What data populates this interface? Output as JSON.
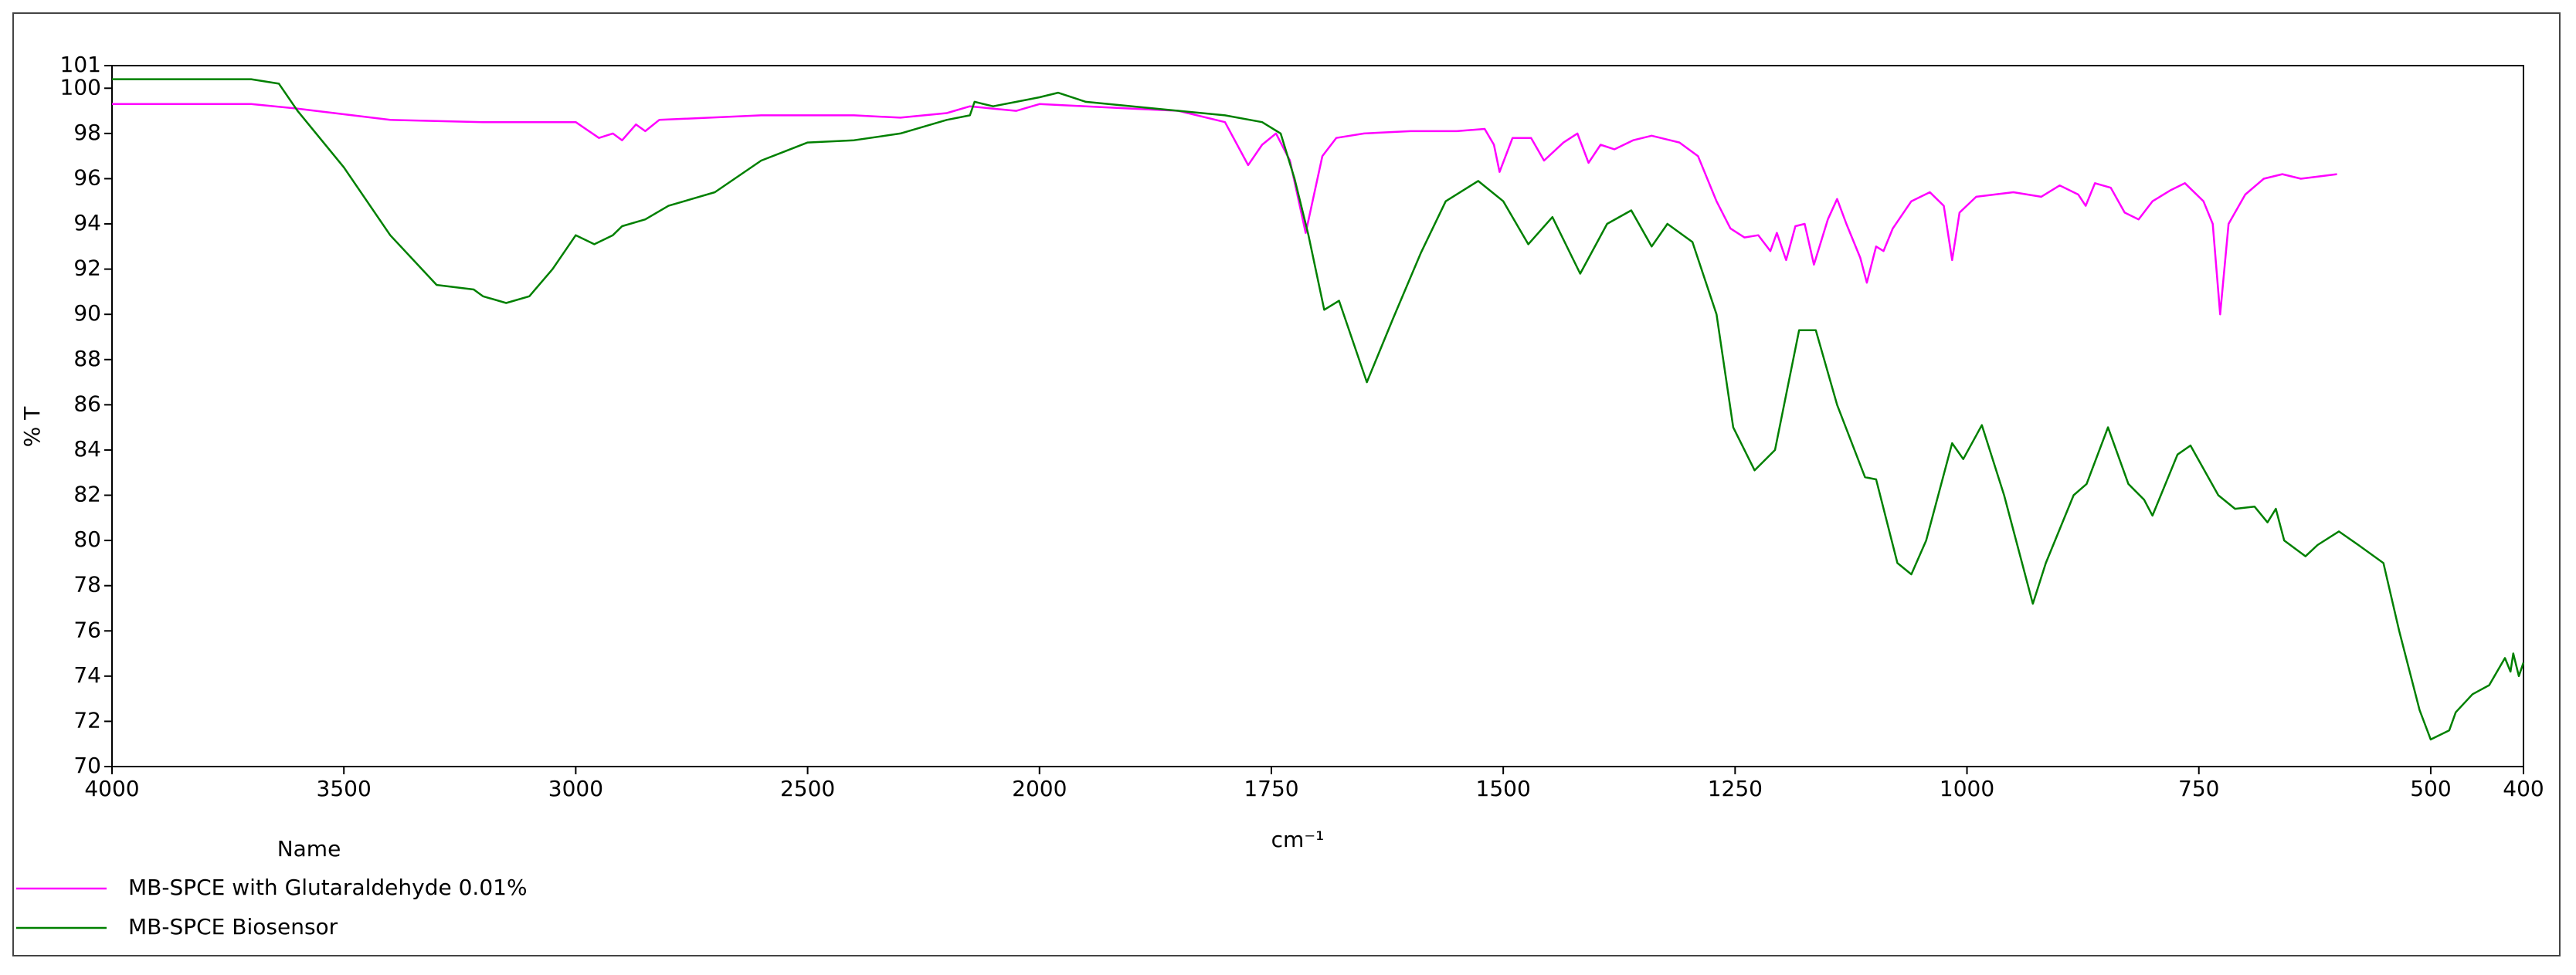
{
  "chart_data": {
    "type": "line",
    "x_label": "cm⁻¹",
    "y_label": "% T",
    "legend_title": "Name",
    "legend": "bottom-left",
    "xlim": [
      4000,
      400
    ],
    "xticks": [
      4000,
      3500,
      3000,
      2500,
      2000,
      1750,
      1500,
      1250,
      1000,
      750,
      500,
      400
    ],
    "ylim": [
      70,
      101
    ],
    "yticks": [
      70,
      72,
      74,
      76,
      78,
      80,
      82,
      84,
      86,
      88,
      90,
      92,
      94,
      96,
      98,
      100,
      101
    ],
    "grid": false,
    "series": [
      {
        "name": "MB-SPCE with Glutaraldehyde 0.01%",
        "color": "#ff00ff",
        "x": [
          4000,
          3700,
          3600,
          3400,
          3200,
          3000,
          2950,
          2920,
          2900,
          2870,
          2850,
          2820,
          2600,
          2400,
          2300,
          2200,
          2150,
          2100,
          2050,
          2000,
          1950,
          1900,
          1850,
          1800,
          1775,
          1760,
          1745,
          1730,
          1713,
          1695,
          1680,
          1650,
          1600,
          1550,
          1520,
          1510,
          1504,
          1490,
          1470,
          1456,
          1435,
          1420,
          1408,
          1395,
          1380,
          1360,
          1340,
          1310,
          1290,
          1270,
          1255,
          1240,
          1225,
          1212,
          1205,
          1195,
          1185,
          1175,
          1165,
          1150,
          1140,
          1130,
          1115,
          1108,
          1098,
          1090,
          1080,
          1060,
          1040,
          1025,
          1016,
          1008,
          990,
          950,
          920,
          900,
          880,
          872,
          862,
          845,
          830,
          815,
          800,
          780,
          765,
          745,
          735,
          727,
          718,
          700,
          680,
          660,
          640,
          620,
          601
        ],
        "values": [
          99.3,
          99.3,
          99.1,
          98.6,
          98.5,
          98.5,
          97.8,
          98.0,
          97.7,
          98.4,
          98.1,
          98.6,
          98.8,
          98.8,
          98.7,
          98.9,
          99.2,
          99.1,
          99.0,
          99.3,
          99.2,
          99.1,
          99.0,
          98.5,
          96.6,
          97.5,
          98.0,
          96.8,
          93.6,
          97.0,
          97.8,
          98.0,
          98.1,
          98.1,
          98.2,
          97.5,
          96.3,
          97.8,
          97.8,
          96.8,
          97.6,
          98.0,
          96.7,
          97.5,
          97.3,
          97.7,
          97.9,
          97.6,
          97.0,
          95.0,
          93.8,
          93.4,
          93.5,
          92.8,
          93.6,
          92.4,
          93.9,
          94.0,
          92.2,
          94.2,
          95.1,
          94.0,
          92.5,
          91.4,
          93.0,
          92.8,
          93.8,
          95.0,
          95.4,
          94.8,
          92.4,
          94.5,
          95.2,
          95.4,
          95.2,
          95.7,
          95.3,
          94.8,
          95.8,
          95.6,
          94.5,
          94.2,
          95.0,
          95.5,
          95.8,
          95.0,
          94.0,
          90.0,
          94.0,
          95.3,
          96.0,
          96.2,
          96.0,
          96.1,
          96.2
        ]
      },
      {
        "name": "MB-SPCE Biosensor",
        "color": "#008000",
        "x": [
          4000,
          3700,
          3640,
          3600,
          3500,
          3400,
          3300,
          3220,
          3200,
          3150,
          3100,
          3050,
          3000,
          2960,
          2920,
          2900,
          2850,
          2800,
          2700,
          2600,
          2500,
          2400,
          2300,
          2200,
          2150,
          2140,
          2100,
          2050,
          2000,
          1980,
          1950,
          1900,
          1800,
          1760,
          1740,
          1725,
          1710,
          1693,
          1677,
          1647,
          1619,
          1589,
          1562,
          1527,
          1500,
          1473,
          1447,
          1417,
          1388,
          1362,
          1340,
          1323,
          1296,
          1270,
          1252,
          1229,
          1207,
          1181,
          1163,
          1140,
          1110,
          1098,
          1075,
          1060,
          1044,
          1016,
          1004,
          984,
          960,
          929,
          915,
          885,
          871,
          848,
          826,
          809,
          800,
          773,
          759,
          729,
          711,
          690,
          676,
          667,
          658,
          635,
          622,
          599,
          578,
          551,
          534,
          512,
          500,
          480,
          473,
          455,
          437,
          420,
          414,
          411,
          405,
          400
        ],
        "values": [
          100.4,
          100.4,
          100.2,
          99.0,
          96.5,
          93.5,
          91.3,
          91.1,
          90.8,
          90.5,
          90.8,
          92.0,
          93.5,
          93.1,
          93.5,
          93.9,
          94.2,
          94.8,
          95.4,
          96.8,
          97.6,
          97.7,
          98.0,
          98.6,
          98.8,
          99.4,
          99.2,
          99.4,
          99.6,
          99.8,
          99.4,
          99.2,
          98.8,
          98.5,
          98.0,
          96.0,
          93.5,
          90.2,
          90.6,
          87.0,
          89.8,
          92.7,
          95.0,
          95.9,
          95.0,
          93.1,
          94.3,
          91.8,
          94.0,
          94.6,
          93.0,
          94.0,
          93.2,
          90.0,
          85.0,
          83.1,
          84.0,
          89.3,
          89.3,
          86.0,
          82.8,
          82.7,
          79.0,
          78.5,
          80.0,
          84.3,
          83.6,
          85.1,
          82.0,
          77.2,
          79.0,
          82.0,
          82.5,
          85.0,
          82.5,
          81.8,
          81.1,
          83.8,
          84.2,
          82.0,
          81.4,
          81.5,
          80.8,
          81.4,
          80.0,
          79.3,
          79.8,
          80.4,
          79.8,
          79.0,
          76.0,
          72.5,
          71.2,
          71.6,
          72.4,
          73.2,
          73.6,
          74.8,
          74.2,
          75.0,
          74.0,
          74.6
        ]
      }
    ]
  }
}
